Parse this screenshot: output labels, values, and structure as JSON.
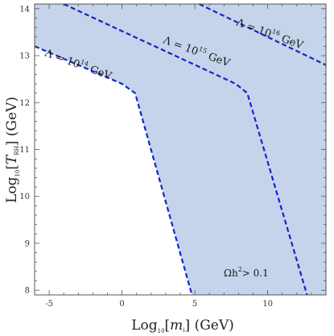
{
  "chart_data": {
    "type": "area",
    "title": "",
    "xlabel": {
      "prefix": "Log",
      "base": "10",
      "open": "[",
      "var": "m",
      "sub": "i",
      "close": "]",
      "suffix": " (GeV)"
    },
    "ylabel": {
      "prefix": "Log",
      "base": "10",
      "open": "[",
      "var": "T",
      "sub": "RH",
      "close": "]",
      "suffix": " (GeV)"
    },
    "xlim": [
      -6,
      14
    ],
    "ylim": [
      7.9,
      14.1
    ],
    "xticks": [
      -5,
      0,
      5,
      10
    ],
    "yticks": [
      8,
      9,
      10,
      11,
      12,
      13,
      14
    ],
    "grid": false,
    "colors": {
      "region": "#c5d4ea",
      "curve": "#1525c8",
      "frame": "#555555"
    },
    "region": {
      "label": {
        "main": "Ωh",
        "sup": "2",
        "rest": "> 0.1"
      },
      "boundary": [
        [
          -6,
          13.2
        ],
        [
          0,
          12.4
        ],
        [
          0.9,
          12.2
        ],
        [
          4.8,
          7.9
        ]
      ]
    },
    "series": [
      {
        "label": {
          "main": "Λ = 10",
          "sup": "14",
          "rest": " GeV"
        },
        "points": [
          [
            -6,
            13.2
          ],
          [
            0,
            12.4
          ],
          [
            0.9,
            12.2
          ],
          [
            4.8,
            7.9
          ]
        ]
      },
      {
        "label": {
          "main": "Λ = 10",
          "sup": "15",
          "rest": " GeV"
        },
        "points": [
          [
            -4,
            14.1
          ],
          [
            7.8,
            12.4
          ],
          [
            8.6,
            12.2
          ],
          [
            12.7,
            7.9
          ]
        ]
      },
      {
        "label": {
          "main": "Λ = 10",
          "sup": "16",
          "rest": " GeV"
        },
        "points": [
          [
            5.3,
            14.1
          ],
          [
            14,
            12.8
          ]
        ]
      }
    ]
  }
}
